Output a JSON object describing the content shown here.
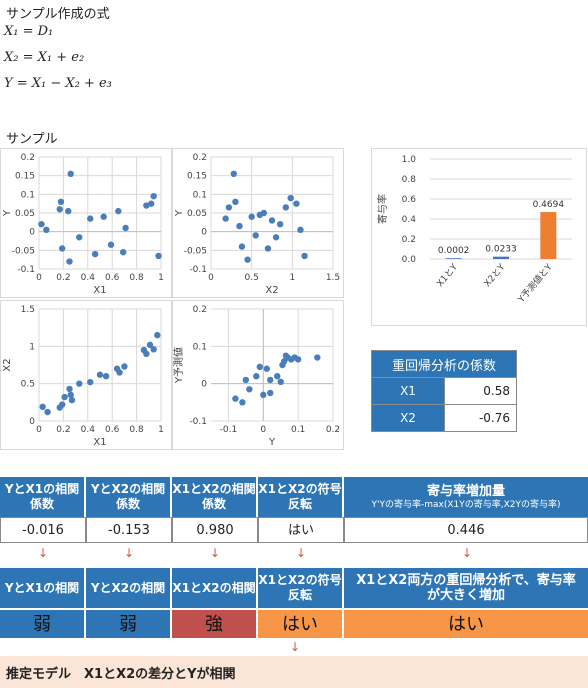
{
  "title": "サンプル作成の式",
  "equations": [
    "X₁ = D₁",
    "X₂ = X₁ + e₂",
    "Y = X₁ − X₂ + e₃"
  ],
  "sample_label": "サンプル",
  "chart_data": [
    {
      "type": "scatter",
      "xlabel": "X1",
      "ylabel": "Y",
      "xlim": [
        0,
        1
      ],
      "ylim": [
        -0.1,
        0.2
      ],
      "xticks": [
        "0",
        "0.2",
        "0.4",
        "0.6",
        "0.8",
        "1"
      ],
      "yticks": [
        "0.2",
        "0.15",
        "0.1",
        "0.05",
        "0",
        "-0.05",
        "-0.1"
      ],
      "points": [
        [
          0.02,
          0.02
        ],
        [
          0.06,
          0.005
        ],
        [
          0.17,
          0.06
        ],
        [
          0.18,
          0.08
        ],
        [
          0.19,
          -0.045
        ],
        [
          0.24,
          0.055
        ],
        [
          0.25,
          -0.08
        ],
        [
          0.26,
          0.155
        ],
        [
          0.33,
          -0.015
        ],
        [
          0.42,
          0.035
        ],
        [
          0.46,
          -0.06
        ],
        [
          0.53,
          0.04
        ],
        [
          0.59,
          -0.035
        ],
        [
          0.65,
          0.055
        ],
        [
          0.69,
          -0.055
        ],
        [
          0.71,
          0.01
        ],
        [
          0.88,
          0.07
        ],
        [
          0.92,
          0.075
        ],
        [
          0.94,
          0.095
        ],
        [
          0.98,
          -0.065
        ]
      ]
    },
    {
      "type": "scatter",
      "xlabel": "X2",
      "ylabel": "Y",
      "xlim": [
        0,
        1.5
      ],
      "ylim": [
        -0.1,
        0.2
      ],
      "xticks": [
        "0",
        "0.5",
        "1",
        "1.5"
      ],
      "yticks": [
        "0.2",
        "0.15",
        "0.1",
        "0.05",
        "0",
        "-0.05",
        "-0.1"
      ],
      "points": [
        [
          0.18,
          0.035
        ],
        [
          0.22,
          0.065
        ],
        [
          0.28,
          0.155
        ],
        [
          0.3,
          0.08
        ],
        [
          0.35,
          0.015
        ],
        [
          0.38,
          -0.04
        ],
        [
          0.45,
          -0.075
        ],
        [
          0.5,
          0.04
        ],
        [
          0.55,
          -0.01
        ],
        [
          0.6,
          0.045
        ],
        [
          0.65,
          0.05
        ],
        [
          0.7,
          -0.045
        ],
        [
          0.75,
          0.03
        ],
        [
          0.8,
          -0.015
        ],
        [
          0.85,
          0.02
        ],
        [
          0.92,
          0.065
        ],
        [
          0.98,
          0.09
        ],
        [
          1.05,
          0.075
        ],
        [
          1.1,
          0.005
        ],
        [
          1.15,
          -0.065
        ]
      ]
    },
    {
      "type": "scatter",
      "xlabel": "X1",
      "ylabel": "X2",
      "xlim": [
        0,
        1
      ],
      "ylim": [
        0,
        1.5
      ],
      "xticks": [
        "0",
        "0.2",
        "0.4",
        "0.6",
        "0.8",
        "1"
      ],
      "yticks": [
        "1.5",
        "1",
        "0.5",
        "0"
      ],
      "points": [
        [
          0.03,
          0.19
        ],
        [
          0.07,
          0.12
        ],
        [
          0.17,
          0.18
        ],
        [
          0.19,
          0.22
        ],
        [
          0.21,
          0.32
        ],
        [
          0.25,
          0.43
        ],
        [
          0.26,
          0.35
        ],
        [
          0.27,
          0.28
        ],
        [
          0.33,
          0.5
        ],
        [
          0.42,
          0.52
        ],
        [
          0.5,
          0.62
        ],
        [
          0.55,
          0.6
        ],
        [
          0.64,
          0.7
        ],
        [
          0.66,
          0.65
        ],
        [
          0.7,
          0.73
        ],
        [
          0.86,
          0.95
        ],
        [
          0.88,
          0.9
        ],
        [
          0.91,
          1.02
        ],
        [
          0.94,
          0.96
        ],
        [
          0.97,
          1.15
        ]
      ]
    },
    {
      "type": "scatter",
      "xlabel": "Y",
      "ylabel": "Y予測値",
      "xlim": [
        -0.15,
        0.2
      ],
      "ylim": [
        -0.1,
        0.2
      ],
      "xticks": [
        "-0.1",
        "0",
        "0.1",
        "0.2"
      ],
      "yticks": [
        "0.2",
        "0.1",
        "0",
        "-0.1"
      ],
      "points": [
        [
          -0.08,
          -0.04
        ],
        [
          -0.06,
          -0.05
        ],
        [
          -0.05,
          0.01
        ],
        [
          -0.04,
          -0.015
        ],
        [
          -0.02,
          0.02
        ],
        [
          -0.01,
          0.045
        ],
        [
          0.0,
          -0.03
        ],
        [
          0.01,
          0.04
        ],
        [
          0.02,
          -0.025
        ],
        [
          0.02,
          0.01
        ],
        [
          0.04,
          0.02
        ],
        [
          0.05,
          0.005
        ],
        [
          0.055,
          0.05
        ],
        [
          0.06,
          0.06
        ],
        [
          0.065,
          0.075
        ],
        [
          0.07,
          0.07
        ],
        [
          0.08,
          0.065
        ],
        [
          0.09,
          0.07
        ],
        [
          0.1,
          0.065
        ],
        [
          0.155,
          0.07
        ]
      ]
    },
    {
      "type": "bar",
      "ylabel": "寄与率",
      "ylim": [
        0,
        1
      ],
      "yticks": [
        "1.0",
        "0.8",
        "0.6",
        "0.4",
        "0.2",
        "0.0"
      ],
      "categories": [
        "X1とY",
        "X2とY",
        "Y予測値とY"
      ],
      "values": [
        0.0002,
        0.0233,
        0.4694
      ],
      "value_labels": [
        "0.0002",
        "0.0233",
        "0.4694"
      ],
      "colors": [
        "#4472c4",
        "#4472c4",
        "#ed7d31"
      ]
    }
  ],
  "coef_table": {
    "header": "重回帰分析の係数",
    "rows": [
      {
        "label": "X1",
        "value": "0.58"
      },
      {
        "label": "X2",
        "value": "-0.76"
      }
    ]
  },
  "summary_table": {
    "headers": [
      "YとX1の相関係数",
      "YとX2の相関係数",
      "X1とX2の相関係数",
      "X1とX2の符号反転"
    ],
    "last_header_title": "寄与率増加量",
    "last_header_sub": "Y'Yの寄与率-max(X1Yの寄与率,X2Yの寄与率)",
    "values": [
      "-0.016",
      "-0.153",
      "0.980",
      "はい",
      "0.446"
    ],
    "arrow": "↓"
  },
  "result_table": {
    "headers": [
      "YとX1の相関",
      "YとX2の相関",
      "X1とX2の相関",
      "X1とX2の符号反転",
      "X1とX2両方の重回帰分析で、寄与率が大きく増加"
    ],
    "values": [
      "弱",
      "弱",
      "強",
      "はい",
      "はい"
    ],
    "colors": [
      "#2e75b6",
      "#2e75b6",
      "#c0504d",
      "#f79646",
      "#f79646"
    ]
  },
  "conclusion": "推定モデル　X1とX2の差分とYが相関"
}
